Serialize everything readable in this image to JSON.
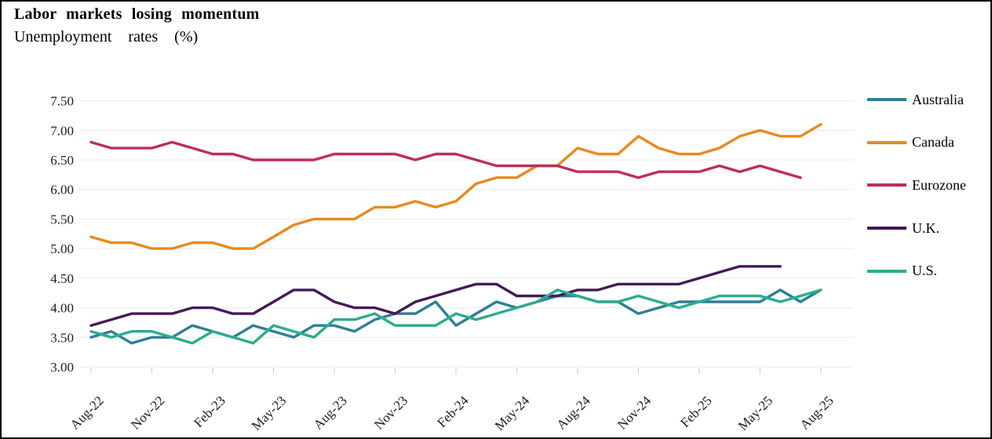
{
  "header": {
    "title": "Labor markets losing momentum",
    "subtitle": "Unemployment rates (%)"
  },
  "chart_data": {
    "type": "line",
    "title": "Labor markets losing momentum",
    "subtitle": "Unemployment rates (%)",
    "grid": "horizontal",
    "legend_position": "right",
    "ylim": [
      3.0,
      7.5
    ],
    "yticks": [
      "7.50",
      "7.00",
      "6.50",
      "6.00",
      "5.50",
      "5.00",
      "4.50",
      "4.00",
      "3.50",
      "3.00"
    ],
    "xtick_every": 3,
    "xtick_labels": [
      "Aug-22",
      "Nov-22",
      "Feb-23",
      "May-23",
      "Aug-23",
      "Nov-23",
      "Feb-24",
      "May-24",
      "Aug-24",
      "Nov-24",
      "Feb-25",
      "May-25",
      "Aug-25"
    ],
    "x": [
      "Aug-22",
      "Sep-22",
      "Oct-22",
      "Nov-22",
      "Dec-22",
      "Jan-23",
      "Feb-23",
      "Mar-23",
      "Apr-23",
      "May-23",
      "Jun-23",
      "Jul-23",
      "Aug-23",
      "Sep-23",
      "Oct-23",
      "Nov-23",
      "Dec-23",
      "Jan-24",
      "Feb-24",
      "Mar-24",
      "Apr-24",
      "May-24",
      "Jun-24",
      "Jul-24",
      "Aug-24",
      "Sep-24",
      "Oct-24",
      "Nov-24",
      "Dec-24",
      "Jan-25",
      "Feb-25",
      "Mar-25",
      "Apr-25",
      "May-25",
      "Jun-25",
      "Jul-25",
      "Aug-25"
    ],
    "series": [
      {
        "name": "Australia",
        "color": "#2E7F96",
        "values": [
          3.5,
          3.6,
          3.4,
          3.5,
          3.5,
          3.7,
          3.6,
          3.5,
          3.7,
          3.6,
          3.5,
          3.7,
          3.7,
          3.6,
          3.8,
          3.9,
          3.9,
          4.1,
          3.7,
          3.9,
          4.1,
          4.0,
          4.1,
          4.2,
          4.2,
          4.1,
          4.1,
          3.9,
          4.0,
          4.1,
          4.1,
          4.1,
          4.1,
          4.1,
          4.3,
          4.1,
          4.3
        ]
      },
      {
        "name": "Canada",
        "color": "#E78A1E",
        "values": [
          5.2,
          5.1,
          5.1,
          5.0,
          5.0,
          5.1,
          5.1,
          5.0,
          5.0,
          5.2,
          5.4,
          5.5,
          5.5,
          5.5,
          5.7,
          5.7,
          5.8,
          5.7,
          5.8,
          6.1,
          6.2,
          6.2,
          6.4,
          6.4,
          6.7,
          6.6,
          6.6,
          6.9,
          6.7,
          6.6,
          6.6,
          6.7,
          6.9,
          7.0,
          6.9,
          6.9,
          7.1
        ]
      },
      {
        "name": "Eurozone",
        "color": "#BE2D5B",
        "values": [
          6.8,
          6.7,
          6.7,
          6.7,
          6.8,
          6.7,
          6.6,
          6.6,
          6.5,
          6.5,
          6.5,
          6.5,
          6.6,
          6.6,
          6.6,
          6.6,
          6.5,
          6.6,
          6.6,
          6.5,
          6.4,
          6.4,
          6.4,
          6.4,
          6.3,
          6.3,
          6.3,
          6.2,
          6.3,
          6.3,
          6.3,
          6.4,
          6.3,
          6.4,
          6.3,
          6.2
        ]
      },
      {
        "name": "U.K.",
        "color": "#451956",
        "values": [
          3.7,
          3.8,
          3.9,
          3.9,
          3.9,
          4.0,
          4.0,
          3.9,
          3.9,
          4.1,
          4.3,
          4.3,
          4.1,
          4.0,
          4.0,
          3.9,
          4.1,
          4.2,
          4.3,
          4.4,
          4.4,
          4.2,
          4.2,
          4.2,
          4.3,
          4.3,
          4.4,
          4.4,
          4.4,
          4.4,
          4.5,
          4.6,
          4.7,
          4.7,
          4.7
        ]
      },
      {
        "name": "U.S.",
        "color": "#2CAC8D",
        "values": [
          3.6,
          3.5,
          3.6,
          3.6,
          3.5,
          3.4,
          3.6,
          3.5,
          3.4,
          3.7,
          3.6,
          3.5,
          3.8,
          3.8,
          3.9,
          3.7,
          3.7,
          3.7,
          3.9,
          3.8,
          3.9,
          4.0,
          4.1,
          4.3,
          4.2,
          4.1,
          4.1,
          4.2,
          4.1,
          4.0,
          4.1,
          4.2,
          4.2,
          4.2,
          4.1,
          4.2,
          4.3
        ]
      }
    ]
  }
}
